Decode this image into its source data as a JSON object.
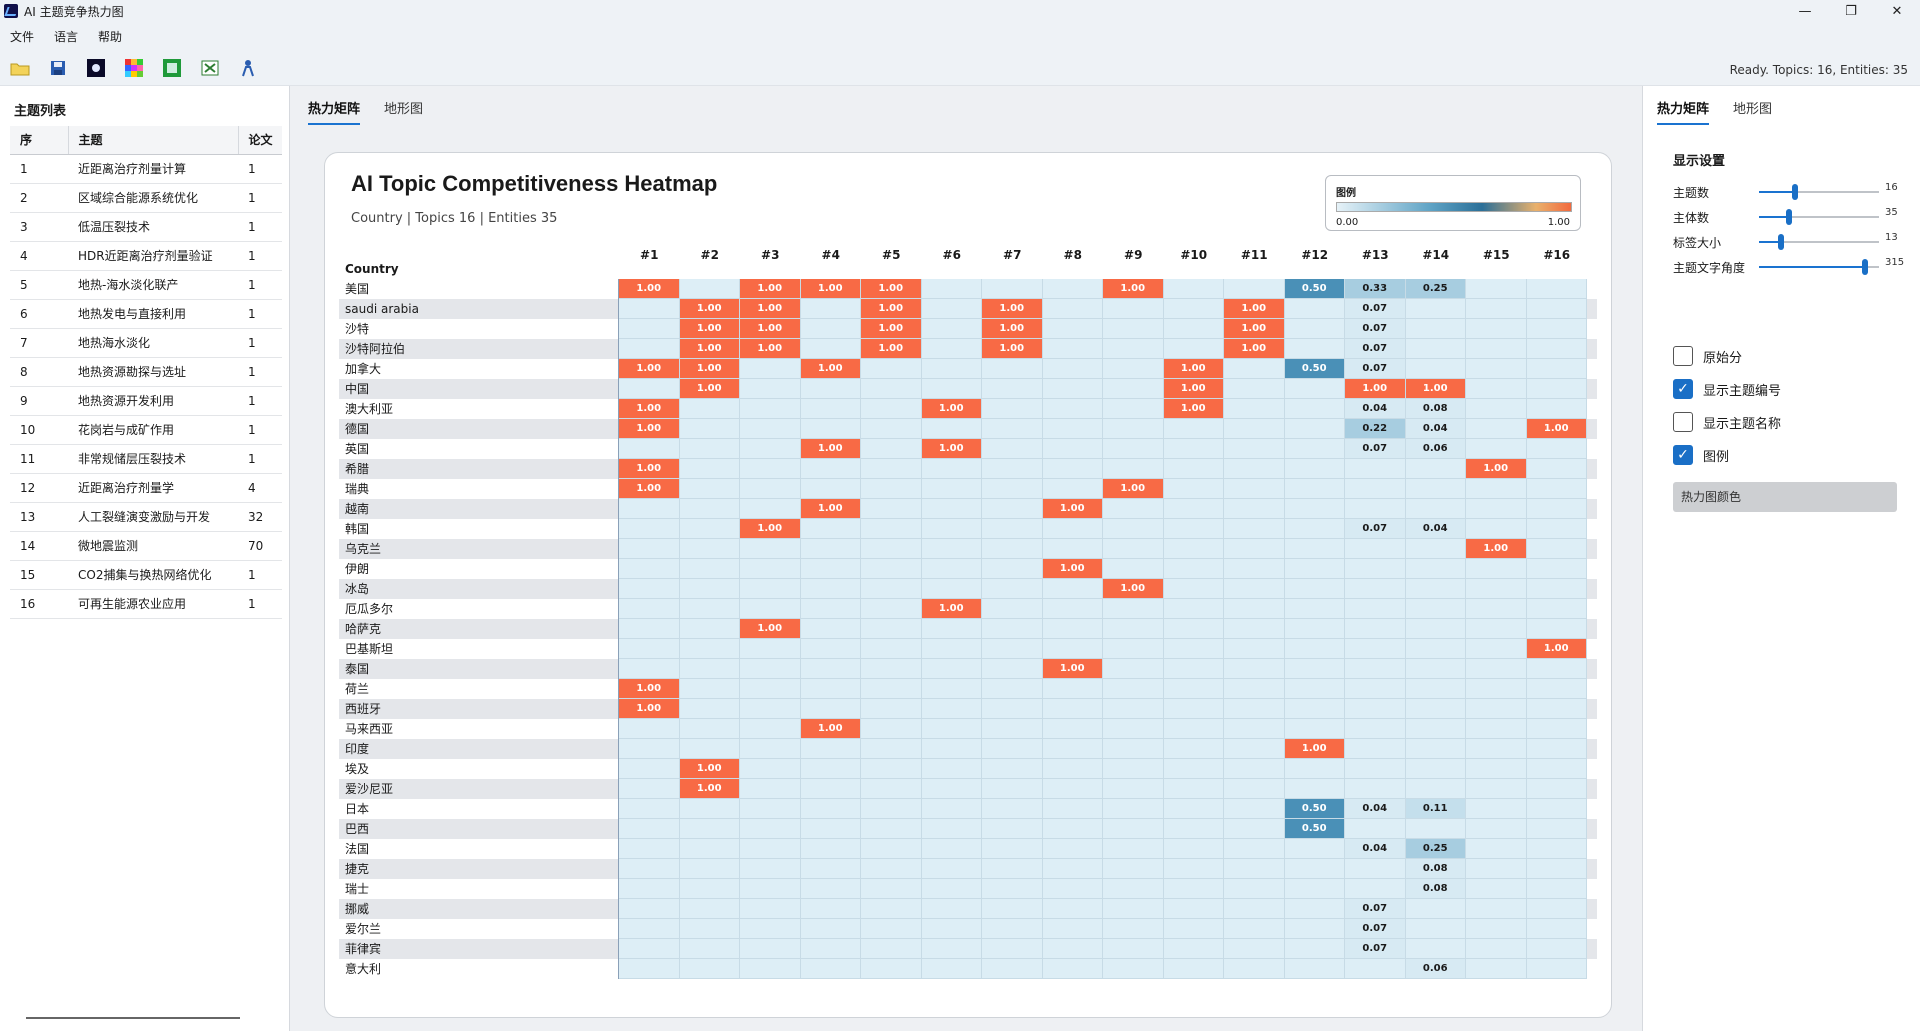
{
  "window": {
    "title": "AI 主题竞争热力图",
    "controls": [
      "—",
      "❐",
      "✕"
    ]
  },
  "menu": [
    "文件",
    "语言",
    "帮助"
  ],
  "status": "Ready. Topics: 16, Entities: 35",
  "topic_panel": {
    "title": "主题列表",
    "headers": [
      "序",
      "主题",
      "论文"
    ],
    "rows": [
      [
        "1",
        "近距离治疗剂量计算",
        "1"
      ],
      [
        "2",
        "区域综合能源系统优化",
        "1"
      ],
      [
        "3",
        "低温压裂技术",
        "1"
      ],
      [
        "4",
        "HDR近距离治疗剂量验证",
        "1"
      ],
      [
        "5",
        "地热-海水淡化联产",
        "1"
      ],
      [
        "6",
        "地热发电与直接利用",
        "1"
      ],
      [
        "7",
        "地热海水淡化",
        "1"
      ],
      [
        "8",
        "地热资源勘探与选址",
        "1"
      ],
      [
        "9",
        "地热资源开发利用",
        "1"
      ],
      [
        "10",
        "花岗岩与成矿作用",
        "1"
      ],
      [
        "11",
        "非常规储层压裂技术",
        "1"
      ],
      [
        "12",
        "近距离治疗剂量学",
        "4"
      ],
      [
        "13",
        "人工裂缝演变激励与开发",
        "32"
      ],
      [
        "14",
        "微地震监测",
        "70"
      ],
      [
        "15",
        "CO2捕集与换热网络优化",
        "1"
      ],
      [
        "16",
        "可再生能源农业应用",
        "1"
      ]
    ]
  },
  "center_tabs": [
    "热力矩阵",
    "地形图"
  ],
  "chart": {
    "title": "AI Topic Competitiveness Heatmap",
    "subtitle": "Country | Topics 16 | Entities 35",
    "row_header": "Country",
    "legend": {
      "title": "图例",
      "min": "0.00",
      "max": "1.00"
    }
  },
  "chart_data": {
    "type": "heatmap",
    "title": "AI Topic Competitiveness Heatmap",
    "columns": [
      "#1",
      "#2",
      "#3",
      "#4",
      "#5",
      "#6",
      "#7",
      "#8",
      "#9",
      "#10",
      "#11",
      "#12",
      "#13",
      "#14",
      "#15",
      "#16"
    ],
    "rows": [
      "美国",
      "saudi arabia",
      "沙特",
      "沙特阿拉伯",
      "加拿大",
      "中国",
      "澳大利亚",
      "德国",
      "英国",
      "希腊",
      "瑞典",
      "越南",
      "韩国",
      "乌克兰",
      "伊朗",
      "冰岛",
      "厄瓜多尔",
      "哈萨克",
      "巴基斯坦",
      "泰国",
      "荷兰",
      "西班牙",
      "马来西亚",
      "印度",
      "埃及",
      "爱沙尼亚",
      "日本",
      "巴西",
      "法国",
      "捷克",
      "瑞士",
      "挪威",
      "爱尔兰",
      "菲律宾",
      "意大利"
    ],
    "values": [
      [
        1,
        0,
        1,
        1,
        1,
        0,
        0,
        0,
        1,
        0,
        0,
        0.5,
        0.33,
        0.25,
        0,
        0
      ],
      [
        0,
        1,
        1,
        0,
        1,
        0,
        1,
        0,
        0,
        0,
        1,
        0,
        0.07,
        0,
        0,
        0
      ],
      [
        0,
        1,
        1,
        0,
        1,
        0,
        1,
        0,
        0,
        0,
        1,
        0,
        0.07,
        0,
        0,
        0
      ],
      [
        0,
        1,
        1,
        0,
        1,
        0,
        1,
        0,
        0,
        0,
        1,
        0,
        0.07,
        0,
        0,
        0
      ],
      [
        1,
        1,
        0,
        1,
        0,
        0,
        0,
        0,
        0,
        1,
        0,
        0.5,
        0.07,
        0,
        0,
        0
      ],
      [
        0,
        1,
        0,
        0,
        0,
        0,
        0,
        0,
        0,
        1,
        0,
        0,
        1,
        1,
        0,
        0
      ],
      [
        1,
        0,
        0,
        0,
        0,
        1,
        0,
        0,
        0,
        1,
        0,
        0,
        0.04,
        0.08,
        0,
        0
      ],
      [
        1,
        0,
        0,
        0,
        0,
        0,
        0,
        0,
        0,
        0,
        0,
        0,
        0.22,
        0.04,
        0,
        1
      ],
      [
        0,
        0,
        0,
        1,
        0,
        1,
        0,
        0,
        0,
        0,
        0,
        0,
        0.07,
        0.06,
        0,
        0
      ],
      [
        1,
        0,
        0,
        0,
        0,
        0,
        0,
        0,
        0,
        0,
        0,
        0,
        0,
        0,
        1,
        0
      ],
      [
        1,
        0,
        0,
        0,
        0,
        0,
        0,
        0,
        1,
        0,
        0,
        0,
        0,
        0,
        0,
        0
      ],
      [
        0,
        0,
        0,
        1,
        0,
        0,
        0,
        1,
        0,
        0,
        0,
        0,
        0,
        0,
        0,
        0
      ],
      [
        0,
        0,
        1,
        0,
        0,
        0,
        0,
        0,
        0,
        0,
        0,
        0,
        0.07,
        0.04,
        0,
        0
      ],
      [
        0,
        0,
        0,
        0,
        0,
        0,
        0,
        0,
        0,
        0,
        0,
        0,
        0,
        0,
        1,
        0
      ],
      [
        0,
        0,
        0,
        0,
        0,
        0,
        0,
        1,
        0,
        0,
        0,
        0,
        0,
        0,
        0,
        0
      ],
      [
        0,
        0,
        0,
        0,
        0,
        0,
        0,
        0,
        1,
        0,
        0,
        0,
        0,
        0,
        0,
        0
      ],
      [
        0,
        0,
        0,
        0,
        0,
        1,
        0,
        0,
        0,
        0,
        0,
        0,
        0,
        0,
        0,
        0
      ],
      [
        0,
        0,
        1,
        0,
        0,
        0,
        0,
        0,
        0,
        0,
        0,
        0,
        0,
        0,
        0,
        0
      ],
      [
        0,
        0,
        0,
        0,
        0,
        0,
        0,
        0,
        0,
        0,
        0,
        0,
        0,
        0,
        0,
        1
      ],
      [
        0,
        0,
        0,
        0,
        0,
        0,
        0,
        1,
        0,
        0,
        0,
        0,
        0,
        0,
        0,
        0
      ],
      [
        1,
        0,
        0,
        0,
        0,
        0,
        0,
        0,
        0,
        0,
        0,
        0,
        0,
        0,
        0,
        0
      ],
      [
        1,
        0,
        0,
        0,
        0,
        0,
        0,
        0,
        0,
        0,
        0,
        0,
        0,
        0,
        0,
        0
      ],
      [
        0,
        0,
        0,
        1,
        0,
        0,
        0,
        0,
        0,
        0,
        0,
        0,
        0,
        0,
        0,
        0
      ],
      [
        0,
        0,
        0,
        0,
        0,
        0,
        0,
        0,
        0,
        0,
        0,
        1,
        0,
        0,
        0,
        0
      ],
      [
        0,
        1,
        0,
        0,
        0,
        0,
        0,
        0,
        0,
        0,
        0,
        0,
        0,
        0,
        0,
        0
      ],
      [
        0,
        1,
        0,
        0,
        0,
        0,
        0,
        0,
        0,
        0,
        0,
        0,
        0,
        0,
        0,
        0
      ],
      [
        0,
        0,
        0,
        0,
        0,
        0,
        0,
        0,
        0,
        0,
        0,
        0.5,
        0.04,
        0.11,
        0,
        0
      ],
      [
        0,
        0,
        0,
        0,
        0,
        0,
        0,
        0,
        0,
        0,
        0,
        0.5,
        0,
        0,
        0,
        0
      ],
      [
        0,
        0,
        0,
        0,
        0,
        0,
        0,
        0,
        0,
        0,
        0,
        0,
        0.04,
        0.25,
        0,
        0
      ],
      [
        0,
        0,
        0,
        0,
        0,
        0,
        0,
        0,
        0,
        0,
        0,
        0,
        0,
        0.08,
        0,
        0
      ],
      [
        0,
        0,
        0,
        0,
        0,
        0,
        0,
        0,
        0,
        0,
        0,
        0,
        0,
        0.08,
        0,
        0
      ],
      [
        0,
        0,
        0,
        0,
        0,
        0,
        0,
        0,
        0,
        0,
        0,
        0,
        0.07,
        0,
        0,
        0
      ],
      [
        0,
        0,
        0,
        0,
        0,
        0,
        0,
        0,
        0,
        0,
        0,
        0,
        0.07,
        0,
        0,
        0
      ],
      [
        0,
        0,
        0,
        0,
        0,
        0,
        0,
        0,
        0,
        0,
        0,
        0,
        0.07,
        0,
        0,
        0
      ],
      [
        0,
        0,
        0,
        0,
        0,
        0,
        0,
        0,
        0,
        0,
        0,
        0,
        0,
        0.06,
        0,
        0
      ]
    ],
    "value_range": [
      0,
      1
    ],
    "colors": {
      "high": "#f86a45",
      "mid": "#4a90b7",
      "low": "#ddeef6"
    }
  },
  "right_panel": {
    "tabs": [
      "热力矩阵",
      "地形图"
    ],
    "section_title": "显示设置",
    "sliders": [
      {
        "label": "主题数",
        "value": "16",
        "fraction": 0.3
      },
      {
        "label": "主体数",
        "value": "35",
        "fraction": 0.25
      },
      {
        "label": "标签大小",
        "value": "13",
        "fraction": 0.18
      },
      {
        "label": "主题文字角度",
        "value": "315",
        "fraction": 0.88
      }
    ],
    "checkboxes": [
      {
        "label": "原始分",
        "checked": false
      },
      {
        "label": "显示主题编号",
        "checked": true
      },
      {
        "label": "显示主题名称",
        "checked": false
      },
      {
        "label": "图例",
        "checked": true
      }
    ],
    "color_button": "热力图颜色"
  },
  "toolbar_icons": [
    "open-folder-icon",
    "save-icon",
    "dark-theme-icon",
    "color-grid-icon",
    "green-square-icon",
    "export-excel-icon",
    "user-icon"
  ]
}
